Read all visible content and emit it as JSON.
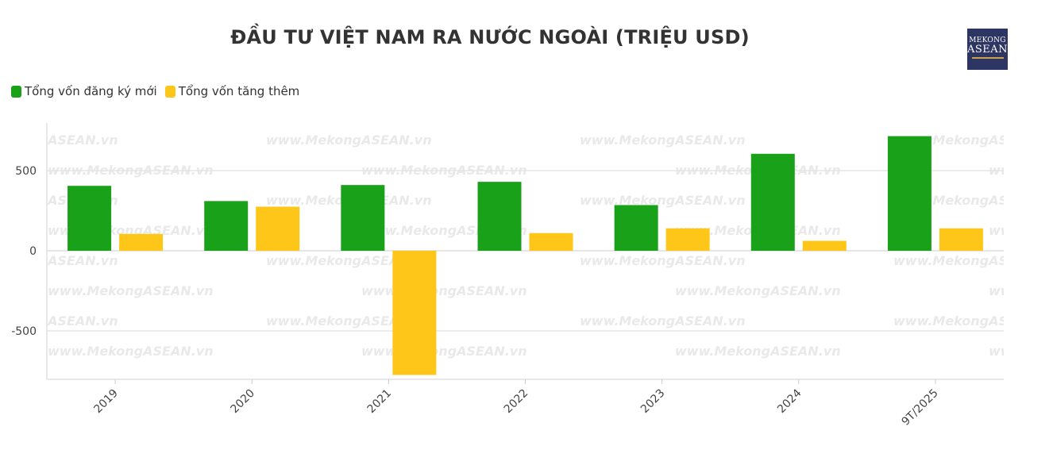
{
  "chart_data": {
    "type": "bar",
    "title": "ĐẦU TƯ VIỆT NAM RA NƯỚC NGOÀI (TRIỆU USD)",
    "categories": [
      "2019",
      "2020",
      "2021",
      "2022",
      "2023",
      "2024",
      "9T/2025"
    ],
    "series": [
      {
        "name": "Tổng vốn đăng ký mới",
        "color": "#1aa11a",
        "values": [
          405,
          310,
          410,
          430,
          285,
          605,
          715
        ]
      },
      {
        "name": "Tổng vốn tăng thêm",
        "color": "#ffc61a",
        "values": [
          105,
          275,
          -775,
          110,
          140,
          62,
          140
        ]
      }
    ],
    "y_ticks": [
      -500,
      0,
      500
    ],
    "ylim": [
      -800,
      800
    ],
    "grid": true,
    "legend_position": "top-left",
    "xlabel": "",
    "ylabel": ""
  },
  "watermark": "www.MekongASEAN.vn",
  "logo": {
    "line1": "MEKONG",
    "line2": "ASEAN"
  }
}
